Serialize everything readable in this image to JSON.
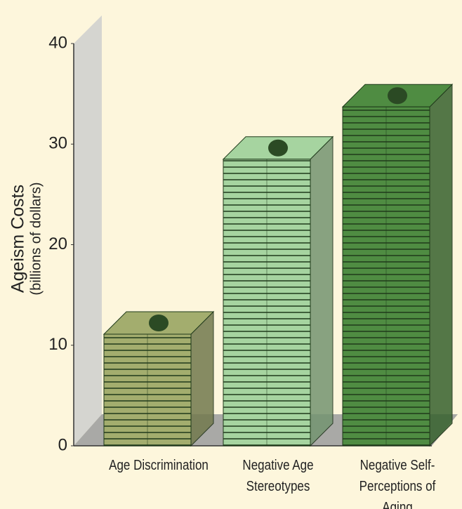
{
  "chart_data": {
    "type": "bar3d",
    "y_label": [
      "Ageism Costs",
      "(billions of dollars)"
    ],
    "categories": [
      "Age Discrimination",
      "Negative Age Stereotypes",
      "Negative Self-Perceptions of Aging"
    ],
    "values": [
      11.1,
      28.5,
      33.7
    ],
    "colors": [
      "#a3ad6e",
      "#a6d4a0",
      "#4f8c42"
    ],
    "ylim": [
      0,
      40
    ],
    "yticks": [
      0,
      10,
      20,
      30,
      40
    ],
    "grid": false
  }
}
